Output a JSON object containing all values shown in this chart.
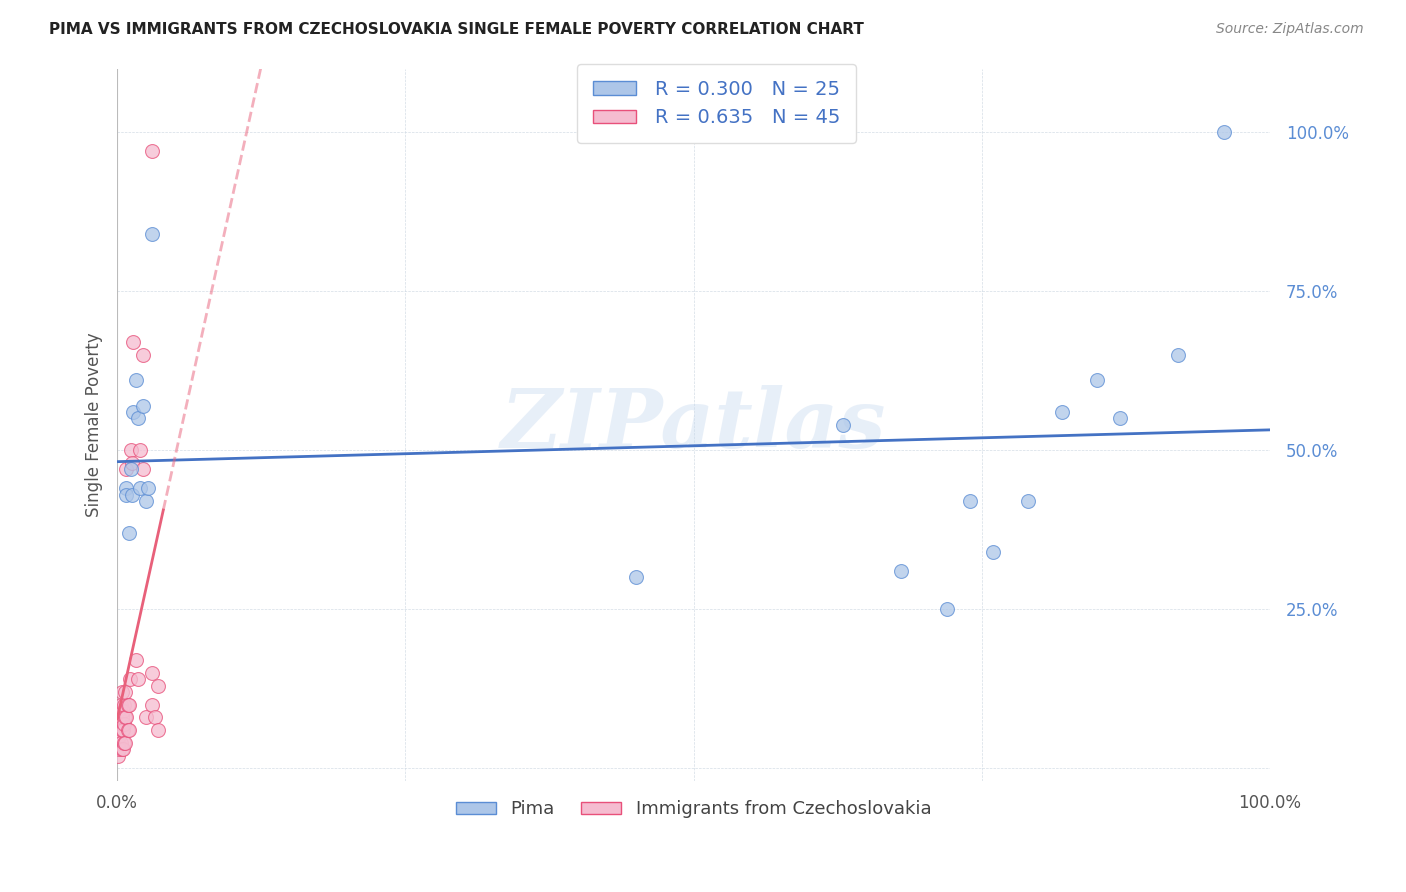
{
  "title": "PIMA VS IMMIGRANTS FROM CZECHOSLOVAKIA SINGLE FEMALE POVERTY CORRELATION CHART",
  "source": "Source: ZipAtlas.com",
  "ylabel": "Single Female Poverty",
  "watermark_text": "ZIPatlas",
  "legend_series1_label": "Pima",
  "legend_series2_label": "Immigrants from Czechoslovakia",
  "series1_R": 0.3,
  "series1_N": 25,
  "series2_R": 0.635,
  "series2_N": 45,
  "series1_color": "#adc6e8",
  "series2_color": "#f5bcd0",
  "series1_edge_color": "#5b8dd4",
  "series2_edge_color": "#e8507a",
  "series1_line_color": "#4472c4",
  "series2_line_color": "#e8607a",
  "background_color": "#ffffff",
  "grid_color": "#d0dae4",
  "title_color": "#222222",
  "source_color": "#888888",
  "ylabel_color": "#555555",
  "ytick_color": "#5b8dd4",
  "xtick_color": "#555555",
  "series1_x": [
    0.008,
    0.008,
    0.01,
    0.012,
    0.013,
    0.014,
    0.016,
    0.018,
    0.02,
    0.022,
    0.025,
    0.027,
    0.03,
    0.45,
    0.63,
    0.68,
    0.72,
    0.74,
    0.76,
    0.79,
    0.82,
    0.85,
    0.87,
    0.92,
    0.96
  ],
  "series1_y": [
    0.44,
    0.43,
    0.37,
    0.47,
    0.43,
    0.56,
    0.61,
    0.55,
    0.44,
    0.57,
    0.42,
    0.44,
    0.84,
    0.3,
    0.54,
    0.31,
    0.25,
    0.42,
    0.34,
    0.42,
    0.56,
    0.61,
    0.55,
    0.65,
    1.0
  ],
  "series2_x": [
    0.001,
    0.001,
    0.001,
    0.001,
    0.002,
    0.002,
    0.002,
    0.003,
    0.003,
    0.003,
    0.004,
    0.004,
    0.004,
    0.004,
    0.005,
    0.005,
    0.005,
    0.006,
    0.006,
    0.006,
    0.007,
    0.007,
    0.007,
    0.008,
    0.008,
    0.009,
    0.009,
    0.01,
    0.01,
    0.011,
    0.012,
    0.013,
    0.014,
    0.016,
    0.018,
    0.02,
    0.022,
    0.025,
    0.03,
    0.03,
    0.033,
    0.035,
    0.022,
    0.03,
    0.035
  ],
  "series2_y": [
    0.02,
    0.04,
    0.06,
    0.09,
    0.03,
    0.05,
    0.08,
    0.04,
    0.07,
    0.1,
    0.03,
    0.06,
    0.08,
    0.12,
    0.03,
    0.06,
    0.09,
    0.04,
    0.07,
    0.1,
    0.04,
    0.08,
    0.12,
    0.08,
    0.47,
    0.06,
    0.1,
    0.06,
    0.1,
    0.14,
    0.5,
    0.48,
    0.67,
    0.17,
    0.14,
    0.5,
    0.65,
    0.08,
    0.1,
    0.15,
    0.08,
    0.06,
    0.47,
    0.97,
    0.13
  ],
  "xlim": [
    0.0,
    1.0
  ],
  "ylim": [
    -0.02,
    1.1
  ],
  "yticks": [
    0.0,
    0.25,
    0.5,
    0.75,
    1.0
  ],
  "ytick_labels": [
    "",
    "25.0%",
    "50.0%",
    "75.0%",
    "100.0%"
  ],
  "xticks": [
    0.0,
    0.25,
    0.5,
    0.75,
    1.0
  ],
  "xtick_labels": [
    "0.0%",
    "",
    "",
    "",
    "100.0%"
  ],
  "marker_size": 100,
  "marker_lw": 0.8,
  "line_width": 2.0
}
